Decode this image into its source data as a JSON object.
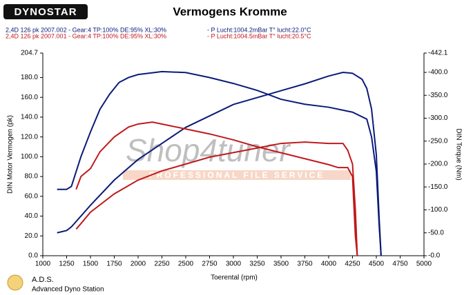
{
  "chart_data": {
    "type": "line",
    "title": "Vermogens Kromme",
    "logo": "DYNOSTAR",
    "footer_title": "A.D.S.",
    "footer_subtitle": "Advanced Dyno Station",
    "watermark": "Shop4tuner",
    "watermark_subtitle": "PROFESSIONAL FILE SERVICE",
    "xlabel": "Toerental (rpm)",
    "ylabel": "DIN Motor Vermogen (pk)",
    "y2label": "DIN Torque (Nm)",
    "xlim": [
      1000,
      5000
    ],
    "xticks": [
      1000,
      1250,
      1500,
      1750,
      2000,
      2250,
      2500,
      2750,
      3000,
      3250,
      3500,
      3750,
      4000,
      4250,
      4500,
      4750,
      5000
    ],
    "ylim": [
      0,
      204.7
    ],
    "yticks": [
      {
        "value": 0,
        "label": "0.0"
      },
      {
        "value": 20,
        "label": "20.0"
      },
      {
        "value": 40,
        "label": "40.0"
      },
      {
        "value": 60,
        "label": "60.0"
      },
      {
        "value": 80,
        "label": "80.0"
      },
      {
        "value": 100,
        "label": "100.0"
      },
      {
        "value": 120,
        "label": "120.0"
      },
      {
        "value": 140,
        "label": "140.0"
      },
      {
        "value": 160,
        "label": "160.0"
      },
      {
        "value": 180,
        "label": "180.0"
      },
      204.7
    ],
    "y2lim": [
      0,
      442.1
    ],
    "y2ticks": [
      {
        "value": 0,
        "label": "-0.0"
      },
      {
        "value": 50,
        "label": "-50.0"
      },
      {
        "value": 100,
        "label": "-100.0"
      },
      {
        "value": 150,
        "label": "-150.0"
      },
      {
        "value": 200,
        "label": "-200.0"
      },
      {
        "value": 250,
        "label": "-250.0"
      },
      {
        "value": 300,
        "label": "-300.0"
      },
      {
        "value": 350,
        "label": "-350.0"
      },
      {
        "value": 400,
        "label": "-400.0"
      },
      {
        "value": 442.1,
        "label": "-442.1"
      }
    ],
    "grid": false,
    "series": [
      {
        "name": "2,4D 126 pk 2007.002 - Gear:4 TP:100% DE:95% XL:30%",
        "note": "- P Lucht:1004.2mBar T° lucht:22.0°C",
        "color": "#0a1a78",
        "x": [
          1150,
          1250,
          1300,
          1400,
          1500,
          1600,
          1700,
          1800,
          1900,
          2000,
          2250,
          2500,
          2750,
          3000,
          3250,
          3500,
          3750,
          4000,
          4250,
          4400,
          4450,
          4500,
          4530,
          4550
        ],
        "values": [
          67,
          67,
          70,
          100,
          125,
          148,
          163,
          175,
          180,
          183,
          186,
          185,
          180,
          174,
          167,
          158,
          153,
          150,
          145,
          138,
          120,
          85,
          30,
          0
        ]
      },
      {
        "color": "#0a1a78",
        "axis": "y2",
        "x": [
          1150,
          1250,
          1300,
          1500,
          1750,
          2000,
          2250,
          2500,
          2750,
          3000,
          3250,
          3500,
          3750,
          4000,
          4150,
          4250,
          4350,
          4400,
          4450,
          4500,
          4530,
          4550
        ],
        "values": [
          50,
          55,
          63,
          110,
          165,
          210,
          245,
          280,
          305,
          330,
          345,
          360,
          375,
          392,
          400,
          398,
          385,
          365,
          320,
          220,
          80,
          0
        ]
      },
      {
        "name": "2,4D 126 pk 2007.001 - Gear:4 TP:100% DE:95% XL:30%",
        "note": "- P Lucht:1004.5mBar T° lucht:20.5°C",
        "color": "#c0181c",
        "x": [
          1350,
          1400,
          1500,
          1600,
          1750,
          1900,
          2000,
          2150,
          2250,
          2500,
          2750,
          3000,
          3250,
          3500,
          3750,
          4000,
          4100,
          4200,
          4250,
          4280,
          4300
        ],
        "values": [
          67,
          80,
          88,
          105,
          120,
          130,
          133,
          135,
          133,
          128,
          123,
          117,
          110,
          104,
          98,
          92,
          89,
          89,
          80,
          20,
          0
        ]
      },
      {
        "color": "#c0181c",
        "axis": "y2",
        "x": [
          1350,
          1400,
          1500,
          1750,
          2000,
          2250,
          2500,
          2750,
          3000,
          3250,
          3500,
          3750,
          4000,
          4150,
          4200,
          4250,
          4280,
          4300
        ],
        "values": [
          58,
          70,
          95,
          135,
          165,
          185,
          200,
          215,
          225,
          235,
          245,
          248,
          245,
          245,
          230,
          200,
          100,
          0
        ]
      }
    ]
  }
}
